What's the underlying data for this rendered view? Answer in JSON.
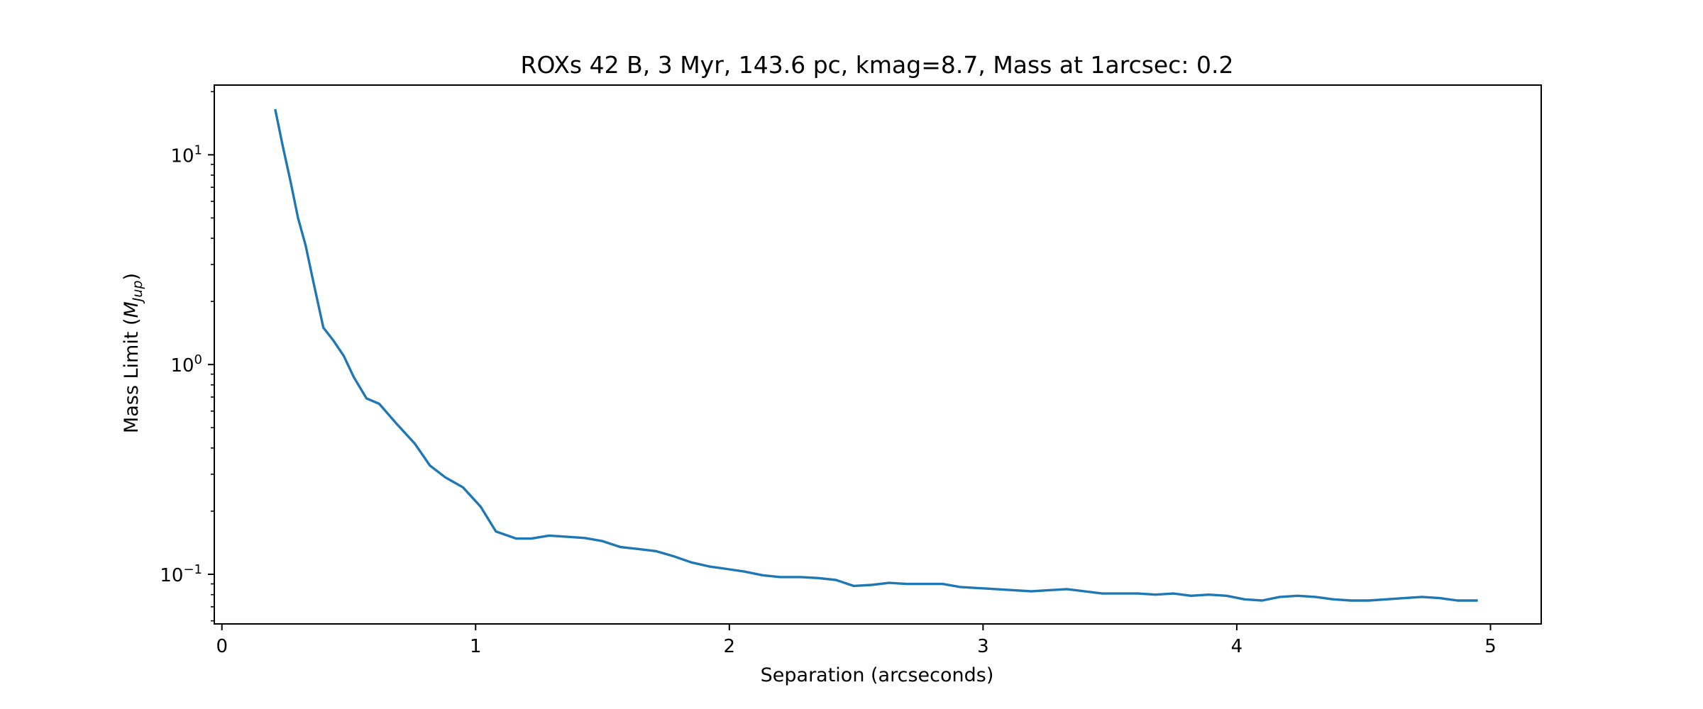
{
  "chart_data": {
    "type": "line",
    "title": "ROXs 42 B, 3 Myr, 143.6 pc, kmag=8.7, Mass at 1arcsec: 0.2",
    "xlabel": "Separation (arcseconds)",
    "ylabel": "Mass Limit (M_Jup)",
    "ylabel_parts": {
      "prefix": "Mass Limit (",
      "symbol": "M",
      "subscript": "Jup",
      "suffix": ")"
    },
    "xscale": "linear",
    "yscale": "log",
    "xlim": [
      -0.03,
      5.2
    ],
    "ylim": [
      0.058,
      21.5
    ],
    "xticks": [
      0,
      1,
      2,
      3,
      4,
      5
    ],
    "yticks": [
      {
        "value": 0.1,
        "base": "10",
        "exp": "−1"
      },
      {
        "value": 1,
        "base": "10",
        "exp": "0"
      },
      {
        "value": 10,
        "base": "10",
        "exp": "1"
      }
    ],
    "grid": false,
    "series": [
      {
        "color": "#1f77b4",
        "x": [
          0.21,
          0.24,
          0.27,
          0.3,
          0.33,
          0.36,
          0.4,
          0.44,
          0.48,
          0.52,
          0.57,
          0.62,
          0.69,
          0.76,
          0.82,
          0.88,
          0.95,
          1.02,
          1.08,
          1.16,
          1.22,
          1.29,
          1.36,
          1.43,
          1.5,
          1.57,
          1.64,
          1.71,
          1.78,
          1.85,
          1.92,
          1.99,
          2.06,
          2.13,
          2.2,
          2.28,
          2.35,
          2.42,
          2.49,
          2.56,
          2.63,
          2.7,
          2.77,
          2.84,
          2.91,
          2.98,
          3.05,
          3.12,
          3.19,
          3.26,
          3.33,
          3.4,
          3.47,
          3.54,
          3.61,
          3.68,
          3.75,
          3.82,
          3.89,
          3.96,
          4.03,
          4.1,
          4.17,
          4.24,
          4.31,
          4.38,
          4.45,
          4.52,
          4.59,
          4.66,
          4.73,
          4.8,
          4.87,
          4.95
        ],
        "y": [
          16.5,
          11.0,
          7.5,
          5.0,
          3.7,
          2.5,
          1.5,
          1.3,
          1.1,
          0.87,
          0.69,
          0.65,
          0.52,
          0.42,
          0.33,
          0.29,
          0.26,
          0.21,
          0.16,
          0.148,
          0.148,
          0.153,
          0.151,
          0.149,
          0.144,
          0.135,
          0.132,
          0.129,
          0.122,
          0.114,
          0.109,
          0.106,
          0.103,
          0.099,
          0.097,
          0.097,
          0.096,
          0.094,
          0.088,
          0.089,
          0.091,
          0.09,
          0.09,
          0.09,
          0.087,
          0.086,
          0.085,
          0.084,
          0.083,
          0.084,
          0.085,
          0.083,
          0.081,
          0.081,
          0.081,
          0.08,
          0.081,
          0.079,
          0.08,
          0.079,
          0.076,
          0.075,
          0.078,
          0.079,
          0.078,
          0.076,
          0.075,
          0.075,
          0.076,
          0.077,
          0.078,
          0.077,
          0.075,
          0.075
        ]
      }
    ]
  }
}
